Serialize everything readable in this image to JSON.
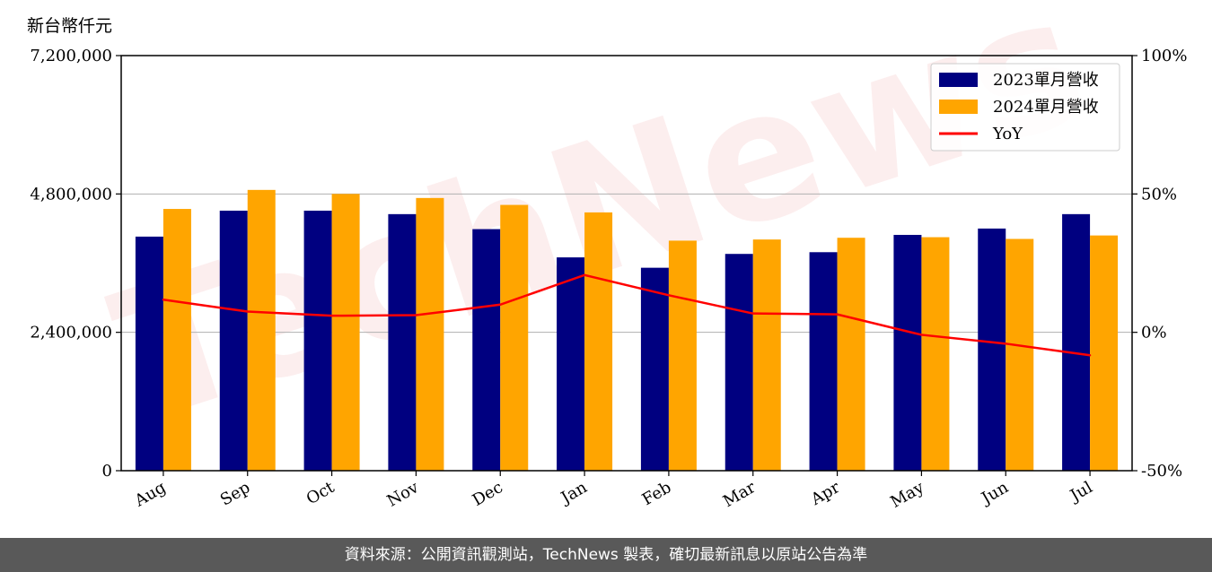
{
  "unit_label": "新台幣仟元",
  "footer_text": "資料來源：公開資訊觀測站，TechNews 製表，確切最新訊息以原站公告為準",
  "watermark": "TechNews",
  "colors": {
    "series_2023": "#000080",
    "series_2024": "#ffa500",
    "yoy": "#ff0000",
    "grid": "#b0b0b0"
  },
  "chart_data": {
    "type": "bar",
    "categories": [
      "Aug",
      "Sep",
      "Oct",
      "Nov",
      "Dec",
      "Jan",
      "Feb",
      "Mar",
      "Apr",
      "May",
      "Jun",
      "Jul"
    ],
    "series": [
      {
        "name": "2023單月營收",
        "values": [
          4060000,
          4510000,
          4510000,
          4450000,
          4190000,
          3700000,
          3520000,
          3760000,
          3790000,
          4090000,
          4200000,
          4450000
        ]
      },
      {
        "name": "2024單月營收",
        "values": [
          4540000,
          4870000,
          4800000,
          4730000,
          4610000,
          4480000,
          3990000,
          4010000,
          4040000,
          4050000,
          4020000,
          4080000
        ]
      }
    ],
    "line_series": {
      "name": "YoY",
      "axis": "right",
      "values": [
        11.8,
        7.5,
        6.0,
        6.2,
        10.0,
        20.7,
        13.4,
        6.8,
        6.5,
        -0.9,
        -4.1,
        -8.3
      ]
    },
    "ylim": [
      0,
      7200000
    ],
    "y_ticks": [
      "0",
      "2,400,000",
      "4,800,000",
      "7,200,000"
    ],
    "y_tick_values": [
      0,
      2400000,
      4800000,
      7200000
    ],
    "y2lim": [
      -50,
      100
    ],
    "y2_ticks": [
      "-50%",
      "0%",
      "50%",
      "100%"
    ],
    "y2_tick_values": [
      -50,
      0,
      50,
      100
    ],
    "grid": "horizontal",
    "legend_position": "top-right",
    "ylabel": "新台幣仟元"
  }
}
